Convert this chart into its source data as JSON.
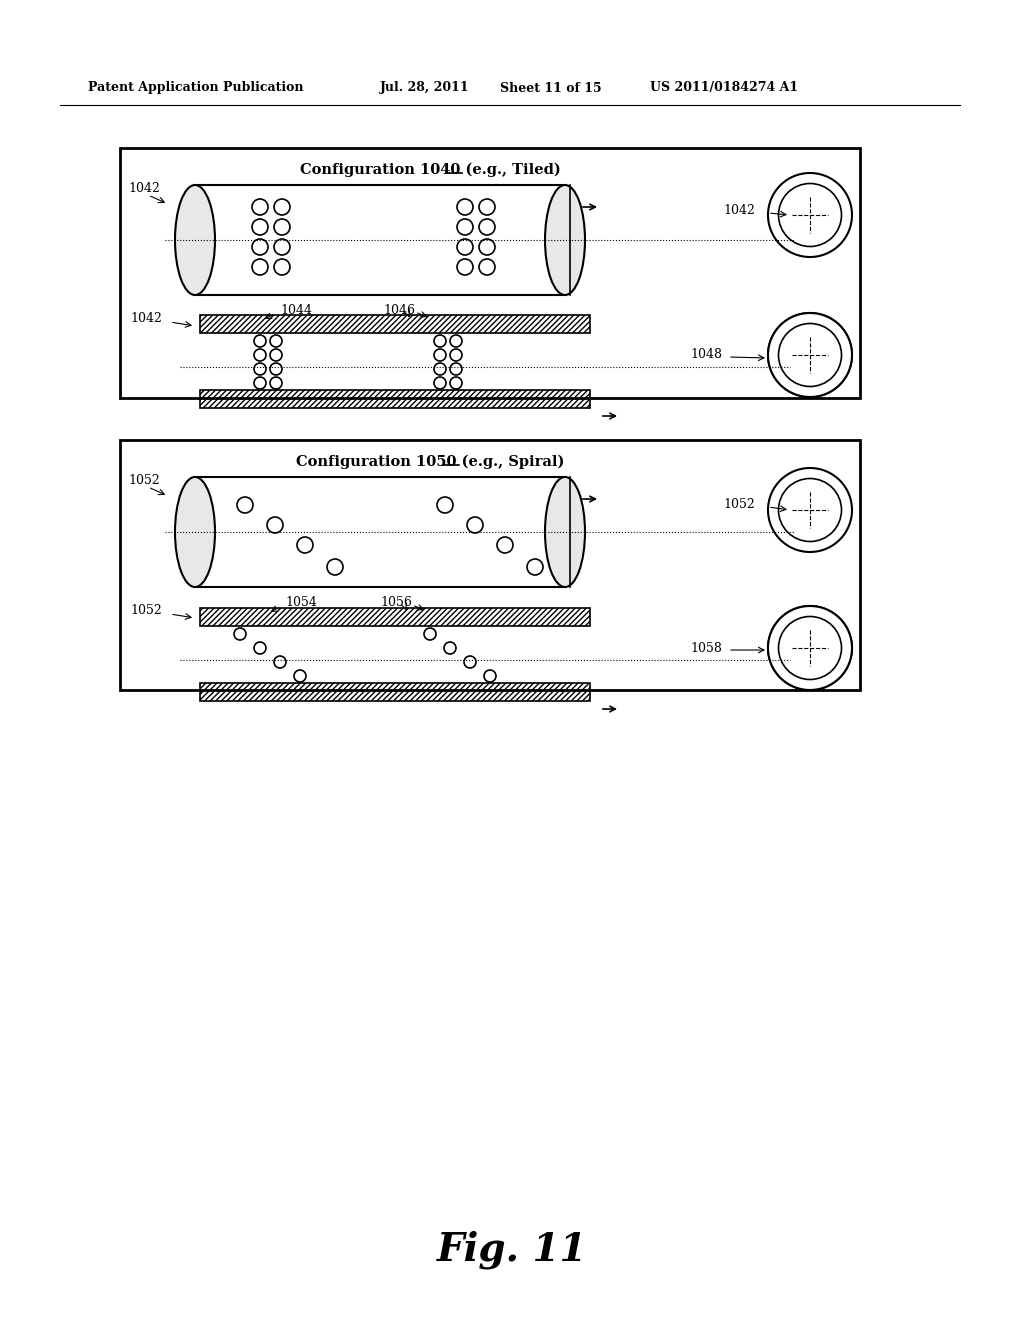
{
  "bg_color": "#ffffff",
  "header_text": "Patent Application Publication",
  "header_date": "Jul. 28, 2011",
  "header_sheet": "Sheet 11 of 15",
  "header_patent": "US 2011/0184274 A1",
  "fig_label": "Fig. 11",
  "config1_title": "Configuration 1040 (e.g., Tiled)",
  "config1_underline_word": "1040",
  "config2_title": "Configuration 1050 (e.g., Spiral)",
  "config2_underline_word": "1050",
  "label_1042_1": "1042",
  "label_1042_2": "1042",
  "label_1042_3": "1042",
  "label_1044": "1044",
  "label_1046": "1046",
  "label_1048": "1048",
  "label_1052_1": "1052",
  "label_1052_2": "1052",
  "label_1052_3": "1052",
  "label_1054": "1054",
  "label_1056": "1056",
  "label_1058": "1058"
}
